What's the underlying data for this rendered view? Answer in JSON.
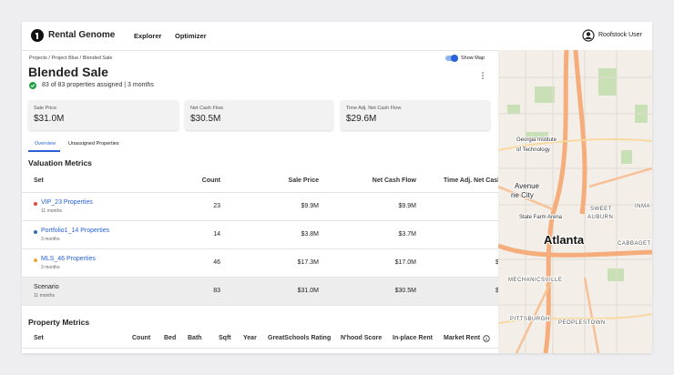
{
  "header": {
    "brand": "Rental Genome",
    "nav": [
      "Explorer",
      "Optimizer"
    ],
    "user": "Roofstock User"
  },
  "breadcrumb": {
    "items": [
      "Projects",
      "Project Blue",
      "Blended Sale"
    ],
    "separator": "/"
  },
  "toggle": "Show Map",
  "title": "Blended Sale",
  "subtitle": "83 of 83 properties assigned | 3 months",
  "cards": [
    {
      "label": "Sale Price",
      "value": "$31.0M"
    },
    {
      "label": "Net Cash Flow",
      "value": "$30.5M"
    },
    {
      "label": "Time Adj. Net Cash Flow",
      "value": "$29.6M"
    }
  ],
  "tabs": [
    "Overview",
    "Unassigned Properties"
  ],
  "valuation": {
    "heading": "Valuation Metrics",
    "columns": [
      "Set",
      "Count",
      "Sale Price",
      "Net Cash Flow",
      "Time Adj. Net Cash"
    ],
    "rows": [
      {
        "name": "VIP_23 Properties",
        "sub": "11 months",
        "color": "#e5483b",
        "cells": [
          "23",
          "$9.9M",
          "$9.9M"
        ]
      },
      {
        "name": "Portfolio1_14 Properties",
        "sub": "3 months",
        "color": "#2f6fb5",
        "cells": [
          "14",
          "$3.8M",
          "$3.7M"
        ]
      },
      {
        "name": "MLS_46 Properties",
        "sub": "3 months",
        "color": "#f0a531",
        "cells": [
          "46",
          "$17.3M",
          "$17.0M",
          "$"
        ]
      },
      {
        "name": "Scenario",
        "sub": "11 months",
        "cells": [
          "83",
          "$31.0M",
          "$30.5M",
          "$"
        ]
      }
    ]
  },
  "property": {
    "heading": "Property Metrics",
    "columns": [
      "Set",
      "Count",
      "Bed",
      "Bath",
      "Sqft",
      "Year",
      "GreatSchools Rating",
      "N'hood Score",
      "In-place Rent",
      "Market Rent"
    ]
  },
  "map": {
    "labels": [
      "Georgia Institute",
      "of Technology",
      "Avenue",
      "ne City",
      "State Farm Arena",
      "SWEET",
      "AUBURN",
      "Atlanta",
      "CABBAGET",
      "INMA",
      "MECHANICSVILLE",
      "PITTSBURGH",
      "PEOPLESTOWN"
    ]
  }
}
